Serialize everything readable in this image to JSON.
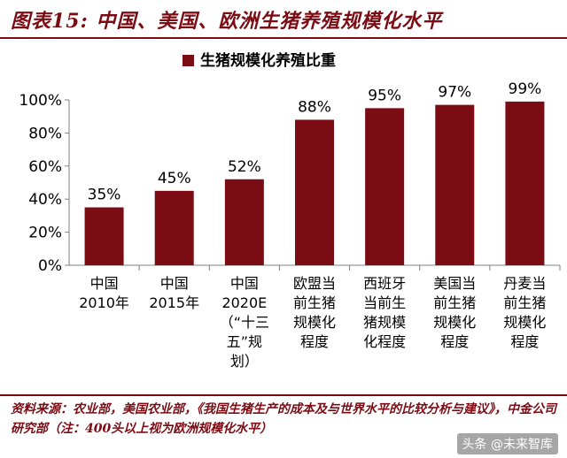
{
  "figure": {
    "title": "图表15: 中国、美国、欧洲生猪养殖规模化水平",
    "source": "资料来源：农业部，美国农业部，《我国生猪生产的成本及与世界水平的比较分析与建议》，中金公司研究部（注：400头以上视为欧洲规模化水平）"
  },
  "watermark": {
    "text": "头条 @未来智库"
  },
  "colors": {
    "bar": "#7b0c14",
    "axis": "#808080",
    "title": "#7b0c14"
  },
  "chart_data": {
    "type": "bar",
    "legend": "生猪规模化养殖比重",
    "legend_position": "top-center",
    "categories": [
      [
        "中国",
        "2010年"
      ],
      [
        "中国",
        "2015年"
      ],
      [
        "中国",
        "2020E",
        "（“十三",
        "五”规",
        "划）"
      ],
      [
        "欧盟当",
        "前生猪",
        "规模化",
        "程度"
      ],
      [
        "西班牙",
        "当前生",
        "猪规模",
        "化程度"
      ],
      [
        "美国当",
        "前生猪",
        "规模化",
        "程度"
      ],
      [
        "丹麦当",
        "前生猪",
        "规模化",
        "程度"
      ]
    ],
    "values": [
      35,
      45,
      52,
      88,
      95,
      97,
      99
    ],
    "data_labels": [
      "35%",
      "45%",
      "52%",
      "88%",
      "95%",
      "97%",
      "99%"
    ],
    "ylim": [
      0,
      100
    ],
    "yticks": [
      "0%",
      "20%",
      "40%",
      "60%",
      "80%",
      "100%"
    ],
    "grid": false
  }
}
